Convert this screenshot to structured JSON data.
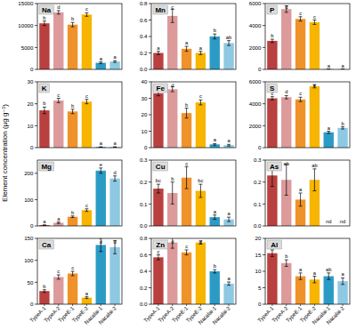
{
  "ylabel": "Element concentration (µg g⁻¹)",
  "chart_data": [
    {
      "type": "bar",
      "title": "Na",
      "categories": [
        "TypeA-1",
        "TypeA-2",
        "TypeE-1",
        "TypeE-2",
        "Nacalai-1",
        "Nacalai-2"
      ],
      "values": [
        10500,
        13000,
        10200,
        12500,
        1500,
        1800
      ],
      "errors": [
        500,
        400,
        500,
        400,
        200,
        200
      ],
      "annotations": [
        "b",
        "d",
        "b",
        "c",
        "a",
        "a"
      ],
      "colors": [
        "#b8403e",
        "#dc9a9b",
        "#f0922a",
        "#f7b500",
        "#2b9bc6",
        "#8ec9e3"
      ],
      "ylim": [
        0,
        15000
      ],
      "yticks": [
        0,
        5000,
        10000,
        15000
      ],
      "tick_labels": "y"
    },
    {
      "type": "bar",
      "title": "Mn",
      "categories": [
        "TypeA-1",
        "TypeA-2",
        "TypeE-1",
        "TypeE-2",
        "Nacalai-1",
        "Nacalai-2"
      ],
      "values": [
        0.2,
        0.65,
        0.25,
        0.2,
        0.4,
        0.32
      ],
      "errors": [
        0.02,
        0.08,
        0.03,
        0.02,
        0.03,
        0.03
      ],
      "annotations": [
        "a",
        "c",
        "a",
        "a",
        "b",
        "ab"
      ],
      "colors": [
        "#b8403e",
        "#dc9a9b",
        "#f0922a",
        "#f7b500",
        "#2b9bc6",
        "#8ec9e3"
      ],
      "ylim": [
        0,
        0.8
      ],
      "yticks": [
        {
          "value": 0,
          "label": "0.0"
        },
        0.2,
        0.4,
        0.6,
        0.8
      ],
      "tick_labels": "y"
    },
    {
      "type": "bar",
      "title": "P",
      "categories": [
        "TypeA-1",
        "TypeA-2",
        "TypeE-1",
        "TypeE-2",
        "Nacalai-1",
        "Nacalai-2"
      ],
      "values": [
        2600,
        5500,
        4600,
        4300,
        20,
        20
      ],
      "errors": [
        150,
        300,
        200,
        200,
        10,
        10
      ],
      "annotations": [
        "b",
        "d",
        "c",
        "c",
        "a",
        "a"
      ],
      "colors": [
        "#b8403e",
        "#dc9a9b",
        "#f0922a",
        "#f7b500",
        "#2b9bc6",
        "#8ec9e3"
      ],
      "ylim": [
        0,
        6000
      ],
      "yticks": [
        0,
        2000,
        4000,
        6000
      ],
      "tick_labels": "y"
    },
    {
      "type": "bar",
      "title": "K",
      "categories": [
        "TypeA-1",
        "TypeA-2",
        "TypeE-1",
        "TypeE-2",
        "Nacalai-1",
        "Nacalai-2"
      ],
      "values": [
        17,
        21.5,
        16.5,
        21,
        0.3,
        0.3
      ],
      "errors": [
        1.5,
        1,
        1,
        1,
        0.1,
        0.1
      ],
      "annotations": [
        "b",
        "c",
        "b",
        "c",
        "a",
        "a"
      ],
      "colors": [
        "#b8403e",
        "#dc9a9b",
        "#f0922a",
        "#f7b500",
        "#2b9bc6",
        "#8ec9e3"
      ],
      "ylim": [
        0,
        30
      ],
      "yticks": [
        0,
        10,
        20,
        30
      ],
      "tick_labels": "y"
    },
    {
      "type": "bar",
      "title": "Fe",
      "categories": [
        "TypeA-1",
        "TypeA-2",
        "TypeE-1",
        "TypeE-2",
        "Nacalai-1",
        "Nacalai-2"
      ],
      "values": [
        33,
        35.5,
        21,
        27.5,
        2,
        1.5
      ],
      "errors": [
        1.5,
        1.5,
        3,
        1.5,
        0.5,
        0.5
      ],
      "annotations": [
        "c",
        "d",
        "b",
        "c",
        "a",
        "a"
      ],
      "colors": [
        "#b8403e",
        "#dc9a9b",
        "#f0922a",
        "#f7b500",
        "#2b9bc6",
        "#8ec9e3"
      ],
      "ylim": [
        0,
        40
      ],
      "yticks": [
        0,
        10,
        20,
        30,
        40
      ],
      "tick_labels": "y"
    },
    {
      "type": "bar",
      "title": "S",
      "categories": [
        "TypeA-1",
        "TypeA-2",
        "TypeE-1",
        "TypeE-2",
        "Nacalai-1",
        "Nacalai-2"
      ],
      "values": [
        4500,
        4600,
        4400,
        5600,
        1400,
        1800
      ],
      "errors": [
        150,
        150,
        200,
        150,
        100,
        100
      ],
      "annotations": [
        "c",
        "d",
        "c",
        "e",
        "a",
        "b"
      ],
      "colors": [
        "#b8403e",
        "#dc9a9b",
        "#f0922a",
        "#f7b500",
        "#2b9bc6",
        "#8ec9e3"
      ],
      "ylim": [
        0,
        6000
      ],
      "yticks": [
        0,
        2000,
        4000,
        6000
      ],
      "tick_labels": "y"
    },
    {
      "type": "bar",
      "title": "Mg",
      "categories": [
        "TypeA-1",
        "TypeA-2",
        "TypeE-1",
        "TypeE-2",
        "Nacalai-1",
        "Nacalai-2"
      ],
      "values": [
        3,
        12,
        35,
        60,
        210,
        180
      ],
      "errors": [
        1,
        3,
        3,
        5,
        10,
        10
      ],
      "annotations": [
        "a",
        "a",
        "b",
        "c",
        "e",
        "d"
      ],
      "colors": [
        "#b8403e",
        "#dc9a9b",
        "#f0922a",
        "#f7b500",
        "#2b9bc6",
        "#8ec9e3"
      ],
      "ylim": [
        0,
        250
      ],
      "yticks": [
        0,
        100,
        200
      ],
      "tick_labels": "y"
    },
    {
      "type": "bar",
      "title": "Cu",
      "categories": [
        "TypeA-1",
        "TypeA-2",
        "TypeE-1",
        "TypeE-2",
        "Nacalai-1",
        "Nacalai-2"
      ],
      "values": [
        0.17,
        0.15,
        0.22,
        0.16,
        0.04,
        0.03
      ],
      "errors": [
        0.02,
        0.05,
        0.05,
        0.03,
        0.01,
        0.01
      ],
      "annotations": [
        "bc",
        "b",
        "c",
        "bc",
        "a",
        "a"
      ],
      "colors": [
        "#b8403e",
        "#dc9a9b",
        "#f0922a",
        "#f7b500",
        "#2b9bc6",
        "#8ec9e3"
      ],
      "ylim": [
        0,
        0.3
      ],
      "yticks": [
        {
          "value": 0,
          "label": "0.0"
        },
        0.1,
        0.2,
        0.3
      ],
      "tick_labels": "y"
    },
    {
      "type": "bar",
      "title": "As",
      "categories": [
        "TypeA-1",
        "TypeA-2",
        "TypeE-1",
        "TypeE-2",
        "Nacalai-1",
        "Nacalai-2"
      ],
      "values": [
        0.23,
        0.21,
        0.12,
        0.21,
        null,
        null
      ],
      "errors": [
        0.05,
        0.07,
        0.03,
        0.05,
        null,
        null
      ],
      "annotations": [
        "b",
        "ab",
        "a",
        "ab",
        "nd",
        "nd"
      ],
      "colors": [
        "#b8403e",
        "#dc9a9b",
        "#f0922a",
        "#f7b500",
        "#2b9bc6",
        "#8ec9e3"
      ],
      "ylim": [
        0,
        0.3
      ],
      "yticks": [
        {
          "value": 0,
          "label": "0.0"
        },
        0.1,
        0.2,
        0.3
      ],
      "tick_labels": "y"
    },
    {
      "type": "bar",
      "title": "Ca",
      "categories": [
        "TypeA-1",
        "TypeA-2",
        "TypeE-1",
        "TypeE-2",
        "Nacalai-1",
        "Nacalai-2"
      ],
      "values": [
        30,
        62,
        70,
        15,
        135,
        130
      ],
      "errors": [
        3,
        5,
        5,
        2,
        15,
        15
      ],
      "annotations": [
        "b",
        "c",
        "c",
        "a",
        "d",
        "d"
      ],
      "colors": [
        "#b8403e",
        "#dc9a9b",
        "#f0922a",
        "#f7b500",
        "#2b9bc6",
        "#8ec9e3"
      ],
      "ylim": [
        0,
        150
      ],
      "yticks": [
        0,
        50,
        100,
        150
      ],
      "tick_labels": true
    },
    {
      "type": "bar",
      "title": "Zn",
      "categories": [
        "TypeA-1",
        "TypeA-2",
        "TypeE-1",
        "TypeE-2",
        "Nacalai-1",
        "Nacalai-2"
      ],
      "values": [
        0.57,
        0.75,
        0.63,
        0.75,
        0.4,
        0.25
      ],
      "errors": [
        0.03,
        0.07,
        0.03,
        0.02,
        0.02,
        0.02
      ],
      "annotations": [
        "c",
        "d",
        "c",
        "d",
        "b",
        "a"
      ],
      "colors": [
        "#b8403e",
        "#dc9a9b",
        "#f0922a",
        "#f7b500",
        "#2b9bc6",
        "#8ec9e3"
      ],
      "ylim": [
        0,
        0.8
      ],
      "yticks": [
        {
          "value": 0,
          "label": "0.0"
        },
        0.2,
        0.4,
        0.6,
        0.8
      ],
      "tick_labels": true
    },
    {
      "type": "bar",
      "title": "Al",
      "categories": [
        "TypeA-1",
        "TypeA-2",
        "TypeE-1",
        "TypeE-2",
        "Nacalai-1",
        "Nacalai-2"
      ],
      "values": [
        15.5,
        12.5,
        8.5,
        7.5,
        8.5,
        7
      ],
      "errors": [
        1,
        1,
        1,
        1,
        1,
        1
      ],
      "annotations": [
        "c",
        "b",
        "a",
        "a",
        "ab",
        "a"
      ],
      "colors": [
        "#b8403e",
        "#dc9a9b",
        "#f0922a",
        "#f7b500",
        "#2b9bc6",
        "#8ec9e3"
      ],
      "ylim": [
        0,
        20
      ],
      "yticks": [
        0,
        5,
        10,
        15,
        20
      ],
      "tick_labels": true
    }
  ]
}
